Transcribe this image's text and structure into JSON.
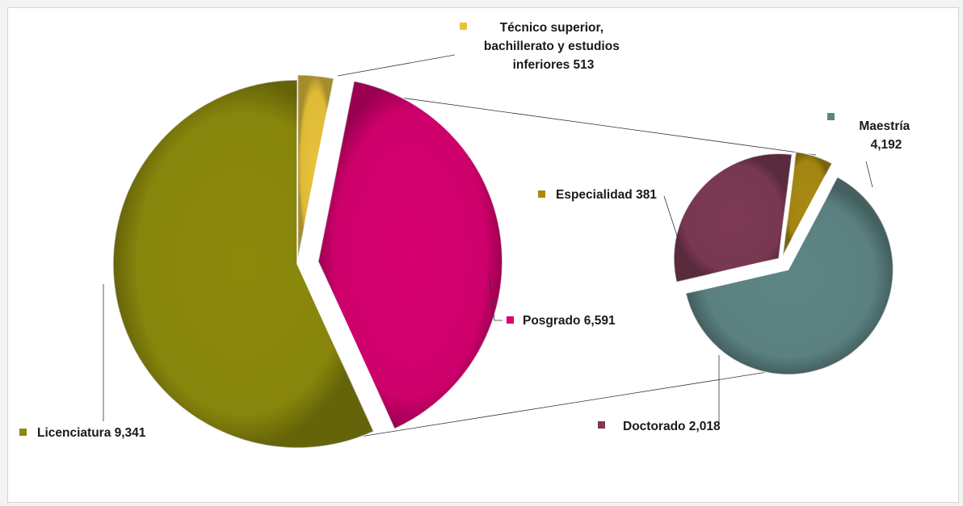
{
  "chart_data": {
    "type": "pie",
    "variant": "pie-of-pie",
    "main": {
      "slices": [
        {
          "key": "tecnico",
          "label_lines": [
            "Técnico superior,",
            "bachillerato y estudios",
            "inferiores  513"
          ],
          "value": 513,
          "color": "#e8c23a"
        },
        {
          "key": "posgrado",
          "label_lines": [
            "Posgrado 6,591"
          ],
          "value": 6591,
          "color": "#d6006f"
        },
        {
          "key": "licenciatura",
          "label_lines": [
            "Licenciatura  9,341"
          ],
          "value": 9341,
          "color": "#8c8a0c"
        }
      ]
    },
    "secondary": {
      "expands": "posgrado",
      "slices": [
        {
          "key": "maestria",
          "label_lines": [
            "Maestría",
            "4,192"
          ],
          "value": 4192,
          "color": "#5e8585"
        },
        {
          "key": "doctorado",
          "label_lines": [
            "Doctorado 2,018"
          ],
          "value": 2018,
          "color": "#7d3a55"
        },
        {
          "key": "especialidad",
          "label_lines": [
            "Especialidad 381"
          ],
          "value": 381,
          "color": "#a88a12"
        }
      ]
    }
  }
}
